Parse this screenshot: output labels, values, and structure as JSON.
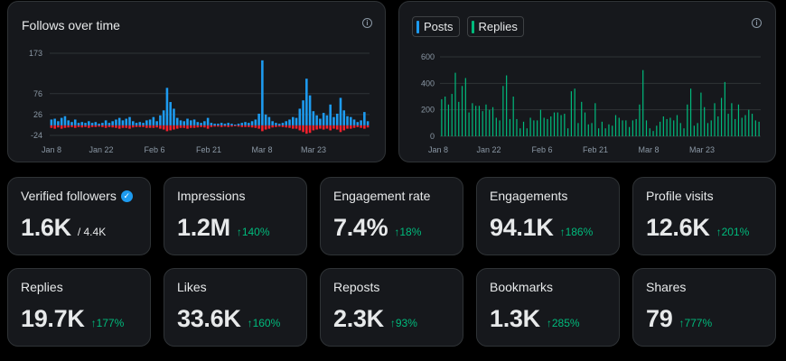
{
  "follows_chart": {
    "title": "Follows over time",
    "info_icon": "info-icon",
    "colors": {
      "follows": "#1d9bf0",
      "unfollows": "#f4212e"
    }
  },
  "posts_chart": {
    "legend": [
      {
        "label": "Posts",
        "color": "#1d9bf0"
      },
      {
        "label": "Replies",
        "color": "#00ba7c"
      }
    ],
    "info_icon": "info-icon"
  },
  "stats": [
    {
      "label": "Verified followers",
      "value": "1.6K",
      "sub": "/ 4.4K",
      "change": "",
      "badge": "verified-badge-icon"
    },
    {
      "label": "Impressions",
      "value": "1.2M",
      "change": "140%"
    },
    {
      "label": "Engagement rate",
      "value": "7.4%",
      "change": "18%"
    },
    {
      "label": "Engagements",
      "value": "94.1K",
      "change": "186%"
    },
    {
      "label": "Profile visits",
      "value": "12.6K",
      "change": "201%"
    },
    {
      "label": "Replies",
      "value": "19.7K",
      "change": "177%"
    },
    {
      "label": "Likes",
      "value": "33.6K",
      "change": "160%"
    },
    {
      "label": "Reposts",
      "value": "2.3K",
      "change": "93%"
    },
    {
      "label": "Bookmarks",
      "value": "1.3K",
      "change": "285%"
    },
    {
      "label": "Shares",
      "value": "79",
      "change": "777%"
    }
  ],
  "chart_data": [
    {
      "type": "bar",
      "title": "Follows over time",
      "x_tick_labels": [
        "Jan 8",
        "Jan 22",
        "Feb 6",
        "Feb 21",
        "Mar 8",
        "Mar 23"
      ],
      "y_tick_labels": [
        "173",
        "76",
        "26",
        "-24"
      ],
      "ylim": [
        -24,
        173
      ],
      "grid": true,
      "series": [
        {
          "values": [
            14,
            16,
            10,
            18,
            22,
            12,
            8,
            14,
            6,
            8,
            6,
            10,
            6,
            8,
            4,
            6,
            12,
            6,
            10,
            14,
            18,
            12,
            16,
            20,
            10,
            6,
            8,
            6,
            12,
            14,
            20,
            10,
            24,
            36,
            90,
            56,
            40,
            18,
            12,
            10,
            16,
            12,
            14,
            8,
            6,
            10,
            18,
            6,
            4,
            4,
            6,
            4,
            6,
            4,
            2,
            4,
            6,
            8,
            6,
            10,
            14,
            28,
            156,
            26,
            20,
            10,
            6,
            4,
            6,
            10,
            14,
            20,
            18,
            40,
            60,
            112,
            72,
            34,
            24,
            16,
            30,
            24,
            50,
            20,
            28,
            66,
            36,
            22,
            20,
            14,
            8,
            12,
            32,
            10
          ]
        },
        {
          "values": [
            -6,
            -8,
            -5,
            -8,
            -6,
            -5,
            -4,
            -6,
            -4,
            -5,
            -4,
            -6,
            -4,
            -4,
            -3,
            -4,
            -6,
            -4,
            -5,
            -6,
            -8,
            -6,
            -6,
            -8,
            -5,
            -4,
            -4,
            -4,
            -6,
            -6,
            -6,
            -5,
            -8,
            -10,
            -14,
            -12,
            -10,
            -8,
            -6,
            -6,
            -8,
            -6,
            -6,
            -5,
            -4,
            -5,
            -8,
            -4,
            -3,
            -3,
            -4,
            -3,
            -4,
            -3,
            -2,
            -3,
            -4,
            -4,
            -4,
            -5,
            -6,
            -8,
            -14,
            -10,
            -8,
            -5,
            -4,
            -3,
            -4,
            -5,
            -6,
            -8,
            -8,
            -12,
            -16,
            -20,
            -18,
            -12,
            -10,
            -8,
            -10,
            -8,
            -12,
            -8,
            -10,
            -16,
            -12,
            -8,
            -8,
            -6,
            -4,
            -6,
            -8,
            -5
          ]
        }
      ]
    },
    {
      "type": "bar",
      "x_tick_labels": [
        "Jan 8",
        "Jan 22",
        "Feb 6",
        "Feb 21",
        "Mar 8",
        "Mar 23"
      ],
      "y_tick_labels": [
        "600",
        "400",
        "200",
        "0"
      ],
      "ylim": [
        0,
        600
      ],
      "grid": true,
      "series": [
        {
          "name": "Posts",
          "values": [
            0,
            0,
            0,
            0,
            0,
            0,
            0,
            0,
            0,
            0,
            0,
            0,
            0,
            0,
            0,
            0,
            0,
            0,
            0,
            0,
            0,
            0,
            0,
            0,
            0,
            0,
            0,
            0,
            0,
            0,
            0,
            0,
            0,
            0,
            0,
            0,
            0,
            0,
            0,
            0,
            0,
            0,
            0,
            0,
            0,
            0,
            0,
            0,
            0,
            0,
            0,
            0,
            0,
            0,
            0,
            0,
            0,
            0,
            0,
            0,
            0,
            0,
            0,
            0,
            0,
            0,
            0,
            0,
            0,
            0,
            0,
            0,
            0,
            0,
            0,
            0,
            0,
            0,
            0,
            0,
            0,
            0,
            0,
            0,
            0,
            0,
            0,
            0,
            0,
            0,
            0,
            0,
            0,
            0
          ]
        },
        {
          "name": "Replies",
          "values": [
            280,
            300,
            240,
            320,
            480,
            260,
            380,
            440,
            180,
            250,
            230,
            230,
            190,
            240,
            200,
            220,
            140,
            120,
            380,
            460,
            130,
            300,
            130,
            60,
            110,
            60,
            140,
            120,
            120,
            200,
            140,
            130,
            150,
            180,
            180,
            160,
            170,
            60,
            340,
            360,
            100,
            260,
            180,
            90,
            100,
            250,
            60,
            110,
            60,
            90,
            80,
            160,
            140,
            120,
            120,
            70,
            120,
            130,
            240,
            500,
            120,
            60,
            40,
            80,
            110,
            150,
            130,
            140,
            120,
            160,
            100,
            60,
            240,
            360,
            80,
            100,
            330,
            220,
            100,
            120,
            250,
            150,
            290,
            410,
            170,
            250,
            130,
            240,
            140,
            160,
            200,
            170,
            120,
            110
          ]
        }
      ]
    }
  ]
}
